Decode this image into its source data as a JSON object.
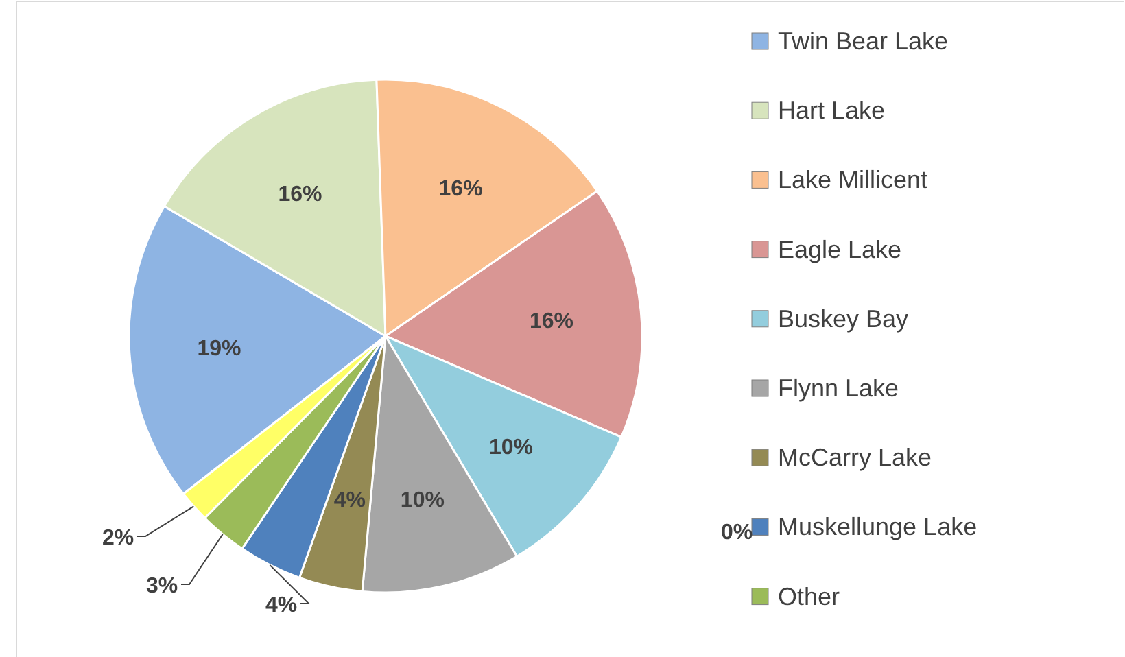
{
  "chart_data": {
    "type": "pie",
    "categories": [
      "Twin Bear Lake",
      "Hart Lake",
      "Lake Millicent",
      "Eagle Lake",
      "Buskey Bay",
      "Flynn Lake",
      "McCarry Lake",
      "Muskellunge Lake",
      "Other",
      null
    ],
    "values": [
      19,
      16,
      16,
      16,
      10,
      10,
      4,
      4,
      3,
      2
    ],
    "value_labels": [
      "19%",
      "16%",
      "16%",
      "16%",
      "10%",
      "10%",
      "4%",
      "4%",
      "3%",
      "2%"
    ],
    "colors": [
      "#8eb4e3",
      "#d7e4bd",
      "#fac090",
      "#d99694",
      "#93cddd",
      "#a6a6a6",
      "#948a54",
      "#4f81bd",
      "#9bbb59",
      "#ffff66"
    ],
    "annotations": [
      "0%"
    ],
    "legend": "right"
  }
}
